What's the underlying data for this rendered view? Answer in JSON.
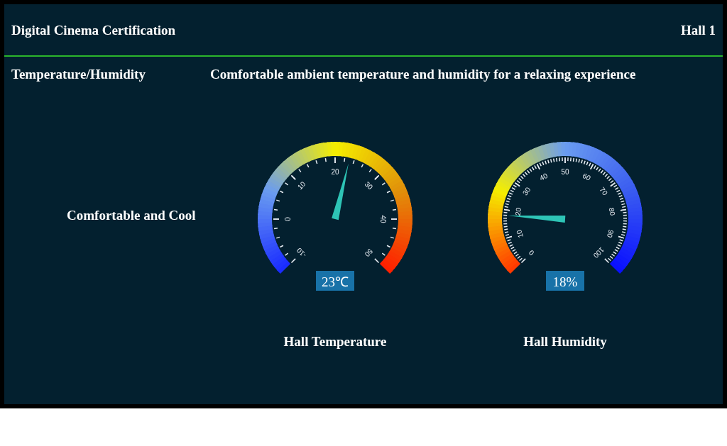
{
  "chart_data": [
    {
      "type": "other",
      "title": "Digital Cinema Certification",
      "subtitle": "Hall 1",
      "annotations": [
        "Temperature/Humidity",
        "Comfortable ambient temperature and humidity for a relaxing experience",
        "Comfortable and Cool"
      ]
    },
    {
      "type": "other",
      "xlabel": "Hall Temperature",
      "values": [
        23
      ],
      "value_labels": [
        "23℃"
      ],
      "annotations": [
        "-10",
        "0",
        "10",
        "20",
        "30",
        "40",
        "50"
      ]
    },
    {
      "type": "other",
      "xlabel": "Hall Humidity",
      "values": [
        18
      ],
      "value_labels": [
        "18%"
      ],
      "annotations": [
        "0",
        "10",
        "20",
        "30",
        "40",
        "50",
        "60",
        "70",
        "80",
        "90",
        "100"
      ]
    }
  ]
}
